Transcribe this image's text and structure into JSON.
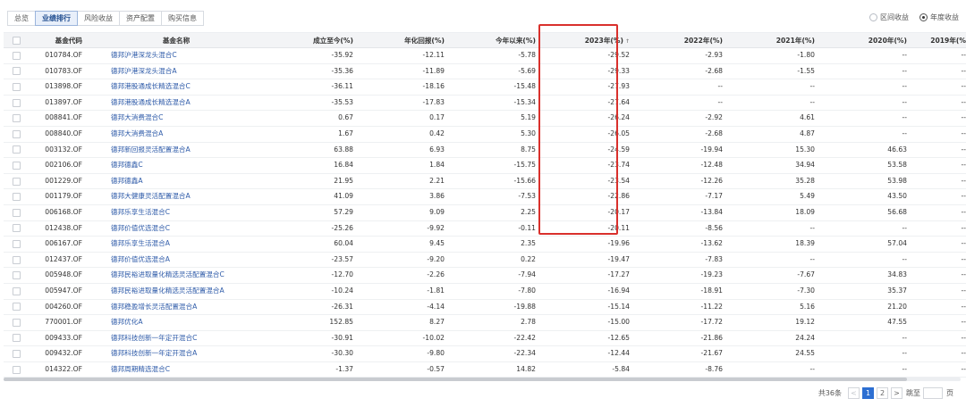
{
  "tabs": [
    {
      "label": "总览",
      "active": false
    },
    {
      "label": "业绩排行",
      "active": true
    },
    {
      "label": "风险收益",
      "active": false
    },
    {
      "label": "资产配置",
      "active": false
    },
    {
      "label": "购买信息",
      "active": false
    }
  ],
  "radios": [
    {
      "label": "区间收益",
      "checked": false
    },
    {
      "label": "年度收益",
      "checked": true
    }
  ],
  "columns": {
    "code": "基金代码",
    "name": "基金名称",
    "since_inception": "成立至今(%)",
    "annualized": "年化回报(%)",
    "ytd": "今年以来(%)",
    "y2023": "2023年(%)",
    "y2023_sort": "↑",
    "y2022": "2022年(%)",
    "y2021": "2021年(%)",
    "y2020": "2020年(%)",
    "y2019": "2019年(%"
  },
  "rows": [
    {
      "code": "010784.OF",
      "name": "德邦沪港深龙头混合C",
      "since_inception": "-35.92",
      "annualized": "-12.11",
      "ytd": "-5.78",
      "y2023": "-29.52",
      "y2022": "-2.93",
      "y2021": "-1.80",
      "y2020": "--",
      "y2019": "--"
    },
    {
      "code": "010783.OF",
      "name": "德邦沪港深龙头混合A",
      "since_inception": "-35.36",
      "annualized": "-11.89",
      "ytd": "-5.69",
      "y2023": "-29.33",
      "y2022": "-2.68",
      "y2021": "-1.55",
      "y2020": "--",
      "y2019": "--"
    },
    {
      "code": "013898.OF",
      "name": "德邦港股通成长精选混合C",
      "since_inception": "-36.11",
      "annualized": "-18.16",
      "ytd": "-15.48",
      "y2023": "-27.93",
      "y2022": "--",
      "y2021": "--",
      "y2020": "--",
      "y2019": "--"
    },
    {
      "code": "013897.OF",
      "name": "德邦港股通成长精选混合A",
      "since_inception": "-35.53",
      "annualized": "-17.83",
      "ytd": "-15.34",
      "y2023": "-27.64",
      "y2022": "--",
      "y2021": "--",
      "y2020": "--",
      "y2019": "--"
    },
    {
      "code": "008841.OF",
      "name": "德邦大消费混合C",
      "since_inception": "0.67",
      "annualized": "0.17",
      "ytd": "5.19",
      "y2023": "-26.24",
      "y2022": "-2.92",
      "y2021": "4.61",
      "y2020": "--",
      "y2019": "--"
    },
    {
      "code": "008840.OF",
      "name": "德邦大消费混合A",
      "since_inception": "1.67",
      "annualized": "0.42",
      "ytd": "5.30",
      "y2023": "-26.05",
      "y2022": "-2.68",
      "y2021": "4.87",
      "y2020": "--",
      "y2019": "--"
    },
    {
      "code": "003132.OF",
      "name": "德邦新回报灵活配置混合A",
      "since_inception": "63.88",
      "annualized": "6.93",
      "ytd": "8.75",
      "y2023": "-24.59",
      "y2022": "-19.94",
      "y2021": "15.30",
      "y2020": "46.63",
      "y2019": "--"
    },
    {
      "code": "002106.OF",
      "name": "德邦德鑫C",
      "since_inception": "16.84",
      "annualized": "1.84",
      "ytd": "-15.75",
      "y2023": "-23.74",
      "y2022": "-12.48",
      "y2021": "34.94",
      "y2020": "53.58",
      "y2019": "--"
    },
    {
      "code": "001229.OF",
      "name": "德邦德鑫A",
      "since_inception": "21.95",
      "annualized": "2.21",
      "ytd": "-15.66",
      "y2023": "-23.54",
      "y2022": "-12.26",
      "y2021": "35.28",
      "y2020": "53.98",
      "y2019": "--"
    },
    {
      "code": "001179.OF",
      "name": "德邦大健康灵活配置混合A",
      "since_inception": "41.09",
      "annualized": "3.86",
      "ytd": "-7.53",
      "y2023": "-22.86",
      "y2022": "-7.17",
      "y2021": "5.49",
      "y2020": "43.50",
      "y2019": "--"
    },
    {
      "code": "006168.OF",
      "name": "德邦乐享生活混合C",
      "since_inception": "57.29",
      "annualized": "9.09",
      "ytd": "2.25",
      "y2023": "-20.17",
      "y2022": "-13.84",
      "y2021": "18.09",
      "y2020": "56.68",
      "y2019": "--"
    },
    {
      "code": "012438.OF",
      "name": "德邦价值优选混合C",
      "since_inception": "-25.26",
      "annualized": "-9.92",
      "ytd": "-0.11",
      "y2023": "-20.11",
      "y2022": "-8.56",
      "y2021": "--",
      "y2020": "--",
      "y2019": "--"
    },
    {
      "code": "006167.OF",
      "name": "德邦乐享生活混合A",
      "since_inception": "60.04",
      "annualized": "9.45",
      "ytd": "2.35",
      "y2023": "-19.96",
      "y2022": "-13.62",
      "y2021": "18.39",
      "y2020": "57.04",
      "y2019": "--"
    },
    {
      "code": "012437.OF",
      "name": "德邦价值优选混合A",
      "since_inception": "-23.57",
      "annualized": "-9.20",
      "ytd": "0.22",
      "y2023": "-19.47",
      "y2022": "-7.83",
      "y2021": "--",
      "y2020": "--",
      "y2019": "--"
    },
    {
      "code": "005948.OF",
      "name": "德邦民裕进取量化精选灵活配置混合C",
      "since_inception": "-12.70",
      "annualized": "-2.26",
      "ytd": "-7.94",
      "y2023": "-17.27",
      "y2022": "-19.23",
      "y2021": "-7.67",
      "y2020": "34.83",
      "y2019": "--"
    },
    {
      "code": "005947.OF",
      "name": "德邦民裕进取量化精选灵活配置混合A",
      "since_inception": "-10.24",
      "annualized": "-1.81",
      "ytd": "-7.80",
      "y2023": "-16.94",
      "y2022": "-18.91",
      "y2021": "-7.30",
      "y2020": "35.37",
      "y2019": "--"
    },
    {
      "code": "004260.OF",
      "name": "德邦稳盈增长灵活配置混合A",
      "since_inception": "-26.31",
      "annualized": "-4.14",
      "ytd": "-19.88",
      "y2023": "-15.14",
      "y2022": "-11.22",
      "y2021": "5.16",
      "y2020": "21.20",
      "y2019": "--"
    },
    {
      "code": "770001.OF",
      "name": "德邦优化A",
      "since_inception": "152.85",
      "annualized": "8.27",
      "ytd": "2.78",
      "y2023": "-15.00",
      "y2022": "-17.72",
      "y2021": "19.12",
      "y2020": "47.55",
      "y2019": "--"
    },
    {
      "code": "009433.OF",
      "name": "德邦科技创新一年定开混合C",
      "since_inception": "-30.91",
      "annualized": "-10.02",
      "ytd": "-22.42",
      "y2023": "-12.65",
      "y2022": "-21.86",
      "y2021": "24.24",
      "y2020": "--",
      "y2019": "--"
    },
    {
      "code": "009432.OF",
      "name": "德邦科技创新一年定开混合A",
      "since_inception": "-30.30",
      "annualized": "-9.80",
      "ytd": "-22.34",
      "y2023": "-12.44",
      "y2022": "-21.67",
      "y2021": "24.55",
      "y2020": "--",
      "y2019": "--"
    },
    {
      "code": "014322.OF",
      "name": "德邦周期精选混合C",
      "since_inception": "-1.37",
      "annualized": "-0.57",
      "ytd": "14.82",
      "y2023": "-5.84",
      "y2022": "-8.76",
      "y2021": "--",
      "y2020": "--",
      "y2019": "--"
    }
  ],
  "pagination": {
    "total": "共36条",
    "prev": "<",
    "pages": [
      {
        "label": "1",
        "active": true
      },
      {
        "label": "2",
        "active": false
      }
    ],
    "next": ">",
    "jump_label": "跳至",
    "jump_value": "",
    "page_unit": "页"
  },
  "colors": {
    "highlight": "#d9302c",
    "link": "#2d5aa8",
    "active_page": "#2d6fd2"
  }
}
